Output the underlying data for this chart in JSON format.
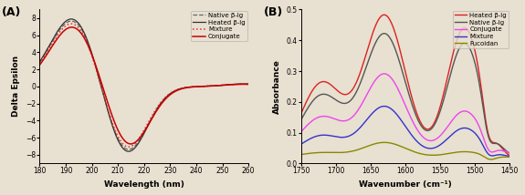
{
  "panel_A": {
    "title": "(A)",
    "xlabel": "Wavelength (nm)",
    "ylabel": "Delta Epsilon",
    "xlim": [
      180,
      260
    ],
    "ylim": [
      -9,
      9
    ],
    "yticks": [
      -8,
      -6,
      -4,
      -2,
      0,
      2,
      4,
      6,
      8
    ],
    "xticks": [
      180,
      190,
      200,
      210,
      220,
      230,
      240,
      250,
      260
    ],
    "legend": [
      "Native β-lg",
      "Heated β-lg",
      "Mixture",
      "Conjugate"
    ],
    "colors": [
      "#666666",
      "#333333",
      "#dd3333",
      "#cc0000"
    ],
    "linestyles": [
      "--",
      "-",
      ":",
      "-"
    ],
    "linewidths": [
      0.9,
      0.9,
      1.1,
      1.1
    ]
  },
  "panel_B": {
    "title": "(B)",
    "xlabel": "Wavenumber (cm⁻¹)",
    "ylabel": "Absorbance",
    "xlim": [
      1750,
      1450
    ],
    "ylim": [
      0,
      0.5
    ],
    "yticks": [
      0.0,
      0.1,
      0.2,
      0.3,
      0.4,
      0.5
    ],
    "xticks": [
      1750,
      1700,
      1650,
      1600,
      1550,
      1500,
      1450
    ],
    "legend": [
      "Heated β-lg",
      "Native β-lg",
      "Conjugate",
      "Mixture",
      "Fucoidan"
    ],
    "colors": [
      "#dd2222",
      "#555555",
      "#ee44ee",
      "#3333cc",
      "#888800"
    ],
    "linestyles": [
      "-",
      "-",
      "-",
      "-",
      "-"
    ],
    "linewidths": [
      1.0,
      1.0,
      1.0,
      1.0,
      1.0
    ]
  },
  "bg_color": "#e8e0d0"
}
